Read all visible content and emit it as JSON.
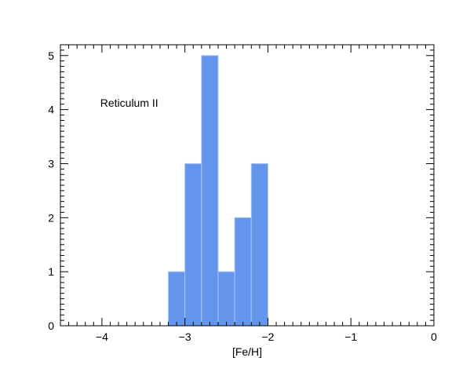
{
  "chart_data": {
    "type": "bar",
    "subtype": "histogram",
    "xlabel": "[Fe/H]",
    "ylabel": "",
    "xlim": [
      -4.5,
      0
    ],
    "ylim": [
      0,
      5.2
    ],
    "x_ticks": [
      -4,
      -3,
      -2,
      -1,
      0
    ],
    "x_tick_labels": [
      "−4",
      "−3",
      "−2",
      "−1",
      "0"
    ],
    "y_ticks": [
      0,
      1,
      2,
      3,
      4,
      5
    ],
    "y_tick_labels": [
      "0",
      "1",
      "2",
      "3",
      "4",
      "5"
    ],
    "grid": false,
    "bar_color": "#6495ED",
    "bar_edge_color": "#a9c3f2",
    "annotation": {
      "text": "Reticulum II",
      "x": -4.02,
      "y": 4.05
    },
    "bins": [
      {
        "x0": -3.2,
        "x1": -3.0,
        "count": 1
      },
      {
        "x0": -3.0,
        "x1": -2.8,
        "count": 3
      },
      {
        "x0": -2.8,
        "x1": -2.6,
        "count": 5
      },
      {
        "x0": -2.6,
        "x1": -2.4,
        "count": 1
      },
      {
        "x0": -2.4,
        "x1": -2.2,
        "count": 2
      },
      {
        "x0": -2.2,
        "x1": -2.0,
        "count": 3
      }
    ]
  }
}
